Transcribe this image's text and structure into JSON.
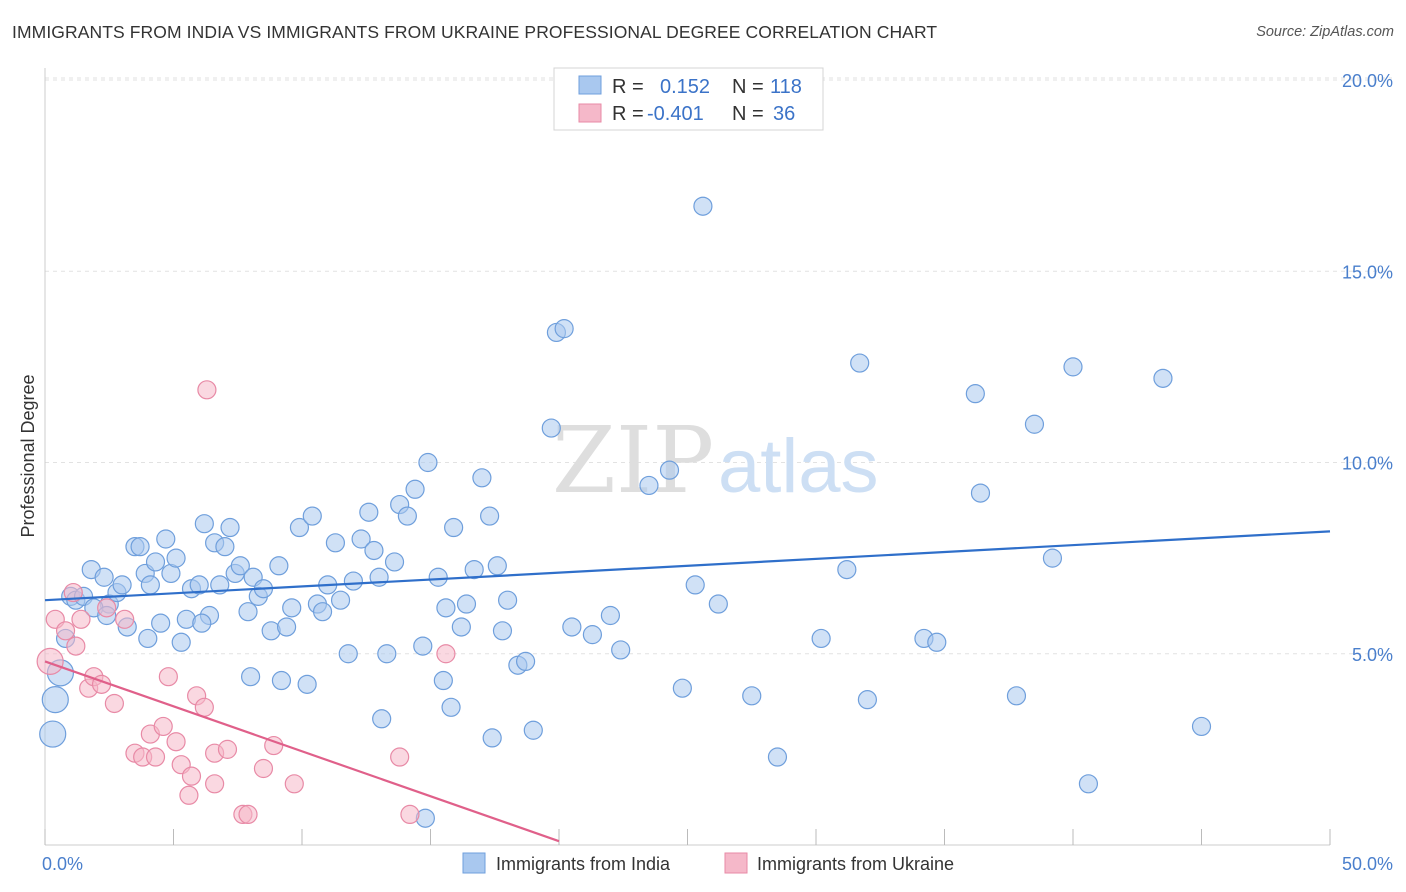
{
  "header": {
    "title": "IMMIGRANTS FROM INDIA VS IMMIGRANTS FROM UKRAINE PROFESSIONAL DEGREE CORRELATION CHART",
    "source": "Source: ZipAtlas.com"
  },
  "watermark": {
    "zip": "ZIP",
    "atlas": "atlas"
  },
  "chart_data": {
    "type": "scatter",
    "title": "IMMIGRANTS FROM INDIA VS IMMIGRANTS FROM UKRAINE PROFESSIONAL DEGREE CORRELATION CHART",
    "xlabel": "",
    "ylabel": "Professional Degree",
    "xlim": [
      0,
      50
    ],
    "ylim": [
      0,
      20
    ],
    "x_tick_labels": [
      "0.0%",
      "50.0%"
    ],
    "y_ticks": [
      5,
      10,
      15,
      20
    ],
    "y_tick_labels": [
      "5.0%",
      "10.0%",
      "15.0%",
      "20.0%"
    ],
    "grid": true,
    "legend_position": "top-center",
    "stats": [
      {
        "r_label": "R =",
        "r": "0.152",
        "n_label": "N =",
        "n": "118"
      },
      {
        "r_label": "R =",
        "r": "-0.401",
        "n_label": "N =",
        "n": "36"
      }
    ],
    "series": [
      {
        "name": "Immigrants from India",
        "color": "#a9c8ef",
        "stroke": "#6f9fdc",
        "trend_color": "#2f6fca",
        "trend": [
          [
            0,
            6.4
          ],
          [
            50,
            8.2
          ]
        ],
        "points": [
          [
            0.3,
            2.9
          ],
          [
            0.4,
            3.8
          ],
          [
            0.6,
            4.5
          ],
          [
            0.8,
            5.4
          ],
          [
            1.0,
            6.5
          ],
          [
            1.2,
            6.4
          ],
          [
            1.5,
            6.5
          ],
          [
            1.8,
            7.2
          ],
          [
            2.3,
            7.0
          ],
          [
            2.5,
            6.3
          ],
          [
            2.8,
            6.6
          ],
          [
            3.0,
            6.8
          ],
          [
            3.2,
            5.7
          ],
          [
            3.5,
            7.8
          ],
          [
            3.7,
            7.8
          ],
          [
            3.9,
            7.1
          ],
          [
            4.1,
            6.8
          ],
          [
            4.3,
            7.4
          ],
          [
            4.5,
            5.8
          ],
          [
            4.7,
            8.0
          ],
          [
            4.9,
            7.1
          ],
          [
            5.1,
            7.5
          ],
          [
            5.3,
            5.3
          ],
          [
            5.5,
            5.9
          ],
          [
            5.7,
            6.7
          ],
          [
            6.0,
            6.8
          ],
          [
            6.2,
            8.4
          ],
          [
            6.4,
            6.0
          ],
          [
            6.6,
            7.9
          ],
          [
            6.8,
            6.8
          ],
          [
            7.0,
            7.8
          ],
          [
            7.2,
            8.3
          ],
          [
            7.4,
            7.1
          ],
          [
            7.6,
            7.3
          ],
          [
            7.9,
            6.1
          ],
          [
            8.1,
            7.0
          ],
          [
            8.3,
            6.5
          ],
          [
            8.5,
            6.7
          ],
          [
            8.8,
            5.6
          ],
          [
            9.1,
            7.3
          ],
          [
            9.4,
            5.7
          ],
          [
            9.6,
            6.2
          ],
          [
            9.9,
            8.3
          ],
          [
            10.4,
            8.6
          ],
          [
            10.6,
            6.3
          ],
          [
            10.8,
            6.1
          ],
          [
            11.0,
            6.8
          ],
          [
            11.3,
            7.9
          ],
          [
            11.5,
            6.4
          ],
          [
            11.8,
            5.0
          ],
          [
            12.0,
            6.9
          ],
          [
            12.3,
            8.0
          ],
          [
            12.6,
            8.7
          ],
          [
            12.8,
            7.7
          ],
          [
            13.0,
            7.0
          ],
          [
            13.3,
            5.0
          ],
          [
            13.6,
            7.4
          ],
          [
            13.8,
            8.9
          ],
          [
            14.1,
            8.6
          ],
          [
            14.4,
            9.3
          ],
          [
            14.7,
            5.2
          ],
          [
            14.9,
            10.0
          ],
          [
            15.3,
            7.0
          ],
          [
            15.6,
            6.2
          ],
          [
            15.9,
            8.3
          ],
          [
            16.2,
            5.7
          ],
          [
            16.4,
            6.3
          ],
          [
            16.7,
            7.2
          ],
          [
            17.0,
            9.6
          ],
          [
            17.3,
            8.6
          ],
          [
            17.6,
            7.3
          ],
          [
            17.8,
            5.6
          ],
          [
            18.0,
            6.4
          ],
          [
            18.4,
            4.7
          ],
          [
            18.7,
            4.8
          ],
          [
            19.7,
            10.9
          ],
          [
            19.9,
            13.4
          ],
          [
            20.2,
            13.5
          ],
          [
            20.5,
            5.7
          ],
          [
            21.3,
            5.5
          ],
          [
            22.0,
            6.0
          ],
          [
            22.4,
            5.1
          ],
          [
            23.5,
            9.4
          ],
          [
            24.3,
            9.8
          ],
          [
            24.8,
            4.1
          ],
          [
            25.3,
            6.8
          ],
          [
            25.6,
            16.7
          ],
          [
            26.2,
            6.3
          ],
          [
            27.5,
            3.9
          ],
          [
            28.5,
            2.3
          ],
          [
            30.2,
            5.4
          ],
          [
            31.2,
            7.2
          ],
          [
            31.7,
            12.6
          ],
          [
            32.0,
            3.8
          ],
          [
            34.2,
            5.4
          ],
          [
            34.7,
            5.3
          ],
          [
            36.2,
            11.8
          ],
          [
            36.4,
            9.2
          ],
          [
            37.8,
            3.9
          ],
          [
            38.5,
            11.0
          ],
          [
            39.2,
            7.5
          ],
          [
            40.0,
            12.5
          ],
          [
            40.6,
            1.6
          ],
          [
            43.5,
            12.2
          ],
          [
            45.0,
            3.1
          ],
          [
            1.9,
            6.2
          ],
          [
            2.4,
            6.0
          ],
          [
            4.0,
            5.4
          ],
          [
            6.1,
            5.8
          ],
          [
            8.0,
            4.4
          ],
          [
            9.2,
            4.3
          ],
          [
            10.2,
            4.2
          ],
          [
            13.1,
            3.3
          ],
          [
            15.8,
            3.6
          ],
          [
            17.4,
            2.8
          ],
          [
            19.0,
            3.0
          ],
          [
            15.5,
            4.3
          ],
          [
            14.8,
            0.7
          ]
        ]
      },
      {
        "name": "Immigrants from Ukraine",
        "color": "#f5b8c9",
        "stroke": "#e88aa6",
        "trend_color": "#e0608a",
        "trend": [
          [
            0,
            4.8
          ],
          [
            20,
            0.1
          ]
        ],
        "points": [
          [
            0.2,
            4.8
          ],
          [
            0.4,
            5.9
          ],
          [
            0.8,
            5.6
          ],
          [
            1.1,
            6.6
          ],
          [
            1.2,
            5.2
          ],
          [
            1.4,
            5.9
          ],
          [
            1.7,
            4.1
          ],
          [
            1.9,
            4.4
          ],
          [
            2.2,
            4.2
          ],
          [
            2.4,
            6.2
          ],
          [
            2.7,
            3.7
          ],
          [
            3.1,
            5.9
          ],
          [
            3.5,
            2.4
          ],
          [
            3.8,
            2.3
          ],
          [
            4.1,
            2.9
          ],
          [
            4.3,
            2.3
          ],
          [
            4.6,
            3.1
          ],
          [
            4.8,
            4.4
          ],
          [
            5.1,
            2.7
          ],
          [
            5.3,
            2.1
          ],
          [
            5.6,
            1.3
          ],
          [
            5.7,
            1.8
          ],
          [
            5.9,
            3.9
          ],
          [
            6.2,
            3.6
          ],
          [
            6.3,
            11.9
          ],
          [
            6.6,
            1.6
          ],
          [
            6.6,
            2.4
          ],
          [
            7.1,
            2.5
          ],
          [
            7.7,
            0.8
          ],
          [
            7.9,
            0.8
          ],
          [
            8.5,
            2.0
          ],
          [
            8.9,
            2.6
          ],
          [
            9.7,
            1.6
          ],
          [
            13.8,
            2.3
          ],
          [
            14.2,
            0.8
          ],
          [
            15.6,
            5.0
          ]
        ]
      }
    ]
  },
  "legend": {
    "india_label": "Immigrants from India",
    "ukraine_label": "Immigrants from Ukraine"
  }
}
